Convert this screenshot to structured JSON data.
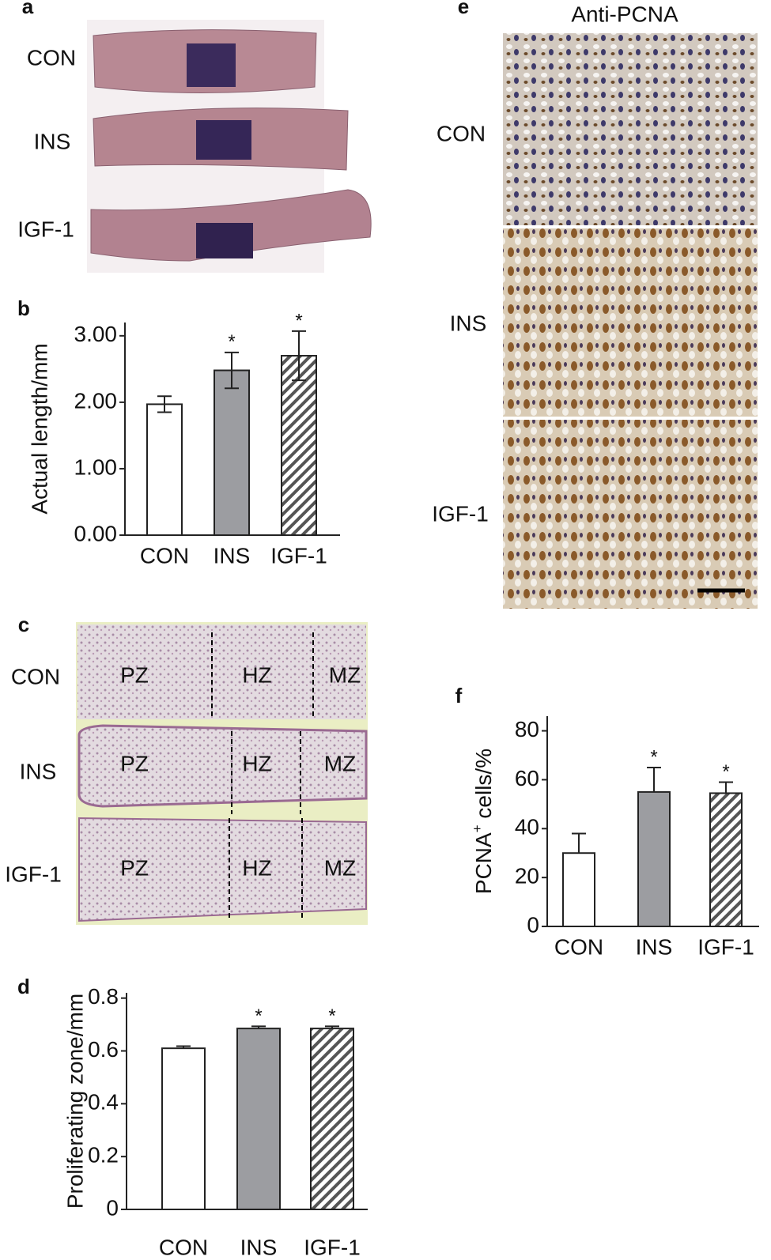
{
  "chart_data": [
    {
      "type": "bar",
      "panel": "b",
      "ylabel": "Actual length/mm",
      "categories": [
        "CON",
        "INS",
        "IGF-1"
      ],
      "values": [
        1.97,
        2.48,
        2.7
      ],
      "errors": [
        0.12,
        0.27,
        0.37
      ],
      "error_bars": "both",
      "significance": [
        null,
        "*",
        "*"
      ],
      "fills": [
        "#ffffff",
        "#9c9da1",
        "hatch"
      ],
      "ylim": [
        0,
        3.2
      ],
      "yticks": [
        {
          "value": 0,
          "label": "0.00"
        },
        {
          "value": 1,
          "label": "1.00"
        },
        {
          "value": 2,
          "label": "2.00"
        },
        {
          "value": 3,
          "label": "3.00"
        }
      ]
    },
    {
      "type": "bar",
      "panel": "d",
      "ylabel": "Proliferating zone/mm",
      "categories": [
        "CON",
        "INS",
        "IGF-1"
      ],
      "values": [
        0.61,
        0.685,
        0.685
      ],
      "errors": [
        0.008,
        0.008,
        0.008
      ],
      "error_bars": "upper",
      "significance": [
        null,
        "*",
        "*"
      ],
      "fills": [
        "#ffffff",
        "#9c9da1",
        "hatch"
      ],
      "ylim": [
        0,
        0.82
      ],
      "yticks": [
        0,
        0.2,
        0.4,
        0.6,
        0.8
      ]
    },
    {
      "type": "bar",
      "panel": "f",
      "ylabel_parts": [
        "PCNA",
        "+",
        " cells/%"
      ],
      "categories": [
        "CON",
        "INS",
        "IGF-1"
      ],
      "values": [
        30,
        55,
        54.5
      ],
      "errors": [
        8,
        10,
        4.5
      ],
      "error_bars": "upper",
      "significance": [
        null,
        "*",
        "*"
      ],
      "fills": [
        "#ffffff",
        "#9c9da1",
        "hatch"
      ],
      "ylim": [
        0,
        86
      ],
      "yticks": [
        0,
        20,
        40,
        60,
        80
      ]
    }
  ],
  "panels": [
    {
      "panel": "a",
      "rows": [
        "CON",
        "INS",
        "IGF-1"
      ]
    },
    {
      "panel": "c",
      "rows": [
        "CON",
        "INS",
        "IGF-1"
      ],
      "zones": [
        "PZ",
        "HZ",
        "MZ"
      ]
    },
    {
      "panel": "e",
      "title": "Anti-PCNA",
      "rows": [
        "CON",
        "INS",
        "IGF-1"
      ]
    }
  ]
}
